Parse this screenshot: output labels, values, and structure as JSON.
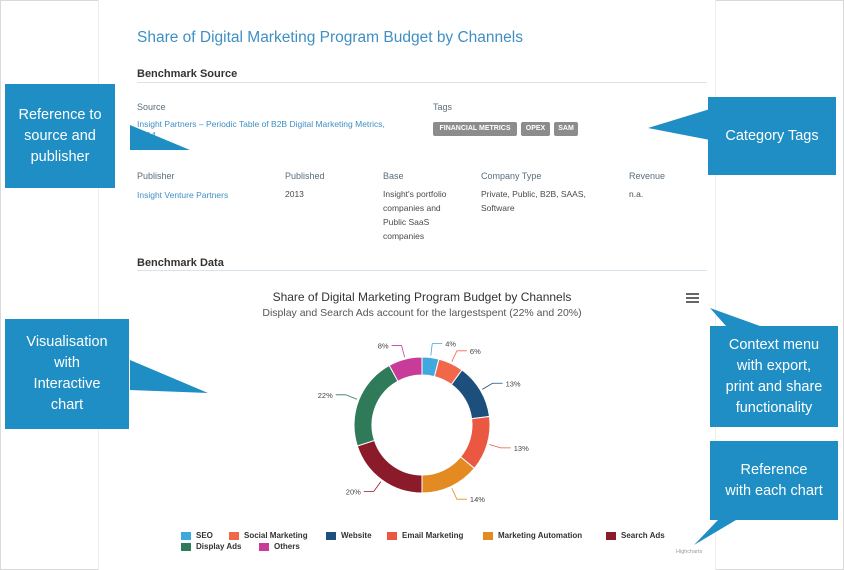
{
  "page": {
    "title": "Share of Digital Marketing Program Budget by Channels",
    "benchmark_source_heading": "Benchmark Source",
    "benchmark_data_heading": "Benchmark Data"
  },
  "source": {
    "source_label": "Source",
    "source_link": "Insight Partners – Periodic Table of B2B Digital Marketing Metrics, 2014",
    "tags_label": "Tags",
    "tags": [
      "FINANCIAL METRICS",
      "OPEX",
      "SAM"
    ],
    "publisher_label": "Publisher",
    "publisher_value": "Insight Venture Partners",
    "published_label": "Published",
    "published_value": "2013",
    "base_label": "Base",
    "base_value": "Insight's portfolio companies and Public SaaS companies",
    "company_type_label": "Company Type",
    "company_type_value": "Private, Public, B2B, SAAS, Software",
    "revenue_label": "Revenue",
    "revenue_value": "n.a."
  },
  "chart": {
    "title": "Share of Digital Marketing Program Budget by Channels",
    "subtitle": "Display and Search Ads account for the largestspent (22% and 20%)",
    "credit": "Highcharts"
  },
  "chart_data": {
    "type": "pie",
    "variant": "donut",
    "title": "Share of Digital Marketing Program Budget by Channels",
    "subtitle": "Display and Search Ads account for the largestspent (22% and 20%)",
    "legend_placement": "bottom",
    "categories": [
      "SEO",
      "Social Marketing",
      "Website",
      "Email Marketing",
      "Marketing Automation",
      "Search Ads",
      "Display Ads",
      "Others"
    ],
    "values": [
      4,
      6,
      13,
      13,
      14,
      20,
      22,
      8
    ],
    "labels": [
      "4%",
      "6%",
      "13%",
      "13%",
      "14%",
      "20%",
      "22%",
      "8%"
    ],
    "colors": [
      "#3fa9de",
      "#f0674a",
      "#1c4f7c",
      "#ea5841",
      "#e38b22",
      "#8b1a2a",
      "#2e7a59",
      "#c83b98"
    ]
  },
  "callouts": [
    "Reference to\nsource and\npublisher",
    "Category Tags",
    "Visualisation\nwith\nInteractive\nchart",
    "Context menu\nwith export,\nprint and share\nfunctionality",
    "Reference\nwith each chart"
  ],
  "callout_color": "#1f8ec4",
  "icons": {
    "context_menu": "hamburger-menu-icon"
  }
}
